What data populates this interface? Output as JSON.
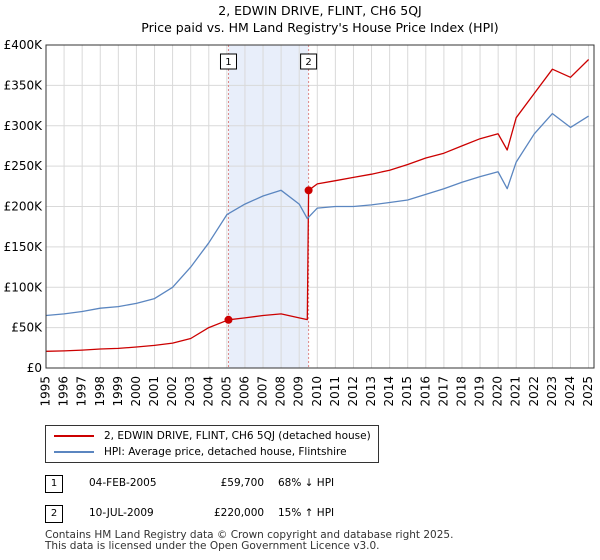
{
  "chart_data": {
    "type": "line",
    "title": "2, EDWIN DRIVE, FLINT, CH6 5QJ",
    "subtitle": "Price paid vs. HM Land Registry's House Price Index (HPI)",
    "xlabel": "",
    "ylabel": "",
    "xlim": [
      1995,
      2025.3
    ],
    "ylim": [
      0,
      400000
    ],
    "ytick_values": [
      0,
      50000,
      100000,
      150000,
      200000,
      250000,
      300000,
      350000,
      400000
    ],
    "ytick_labels": [
      "£0",
      "£50K",
      "£100K",
      "£150K",
      "£200K",
      "£250K",
      "£300K",
      "£350K",
      "£400K"
    ],
    "xtick_labels": [
      "1995",
      "1996",
      "1997",
      "1998",
      "1999",
      "2000",
      "2001",
      "2002",
      "2003",
      "2004",
      "2005",
      "2006",
      "2007",
      "2008",
      "2009",
      "2010",
      "2011",
      "2012",
      "2013",
      "2014",
      "2015",
      "2016",
      "2017",
      "2018",
      "2019",
      "2020",
      "2021",
      "2022",
      "2023",
      "2024",
      "2025"
    ],
    "grid": true,
    "shaded_region": [
      2005.09,
      2009.52
    ],
    "series": [
      {
        "name": "2, EDWIN DRIVE, FLINT, CH6 5QJ (detached house)",
        "color": "#cc0000",
        "x": [
          1995,
          1996,
          1997,
          1998,
          1999,
          2000,
          2001,
          2002,
          2003,
          2004,
          2005.09,
          2006,
          2007,
          2008,
          2009,
          2009.45,
          2009.52,
          2010,
          2011,
          2012,
          2013,
          2014,
          2015,
          2016,
          2017,
          2018,
          2019,
          2020,
          2020.5,
          2021,
          2022,
          2023,
          2024,
          2025
        ],
        "values": [
          20700,
          21200,
          22200,
          23500,
          24300,
          26000,
          28000,
          30800,
          36500,
          50000,
          59700,
          62000,
          65000,
          67000,
          62000,
          60000,
          220000,
          228000,
          232000,
          236000,
          240000,
          245000,
          252000,
          260000,
          266000,
          275000,
          284000,
          290000,
          270000,
          310000,
          340000,
          370000,
          360000,
          382000
        ]
      },
      {
        "name": "HPI: Average price, detached house, Flintshire",
        "color": "#5b86c0",
        "x": [
          1995,
          1996,
          1997,
          1998,
          1999,
          2000,
          2001,
          2002,
          2003,
          2004,
          2005,
          2006,
          2007,
          2008,
          2009,
          2009.45,
          2010,
          2011,
          2012,
          2013,
          2014,
          2015,
          2016,
          2017,
          2018,
          2019,
          2020,
          2020.5,
          2021,
          2022,
          2023,
          2024,
          2025
        ],
        "values": [
          65000,
          67000,
          70000,
          74000,
          76000,
          80000,
          86000,
          100000,
          125000,
          155000,
          190000,
          203000,
          213000,
          220000,
          203000,
          185000,
          198000,
          200000,
          200000,
          202000,
          205000,
          208000,
          215000,
          222000,
          230000,
          237000,
          243000,
          222000,
          255000,
          290000,
          315000,
          298000,
          312000
        ]
      }
    ],
    "sales": [
      {
        "label": "1",
        "x": 2005.09,
        "price": 59700
      },
      {
        "label": "2",
        "x": 2009.52,
        "price": 220000
      }
    ]
  },
  "legend": {
    "items": [
      {
        "label": "2, EDWIN DRIVE, FLINT, CH6 5QJ (detached house)",
        "color": "#cc0000"
      },
      {
        "label": "HPI: Average price, detached house, Flintshire",
        "color": "#5b86c0"
      }
    ]
  },
  "sales_table": [
    {
      "num": "1",
      "date": "04-FEB-2005",
      "price": "£59,700",
      "hpi": "68% ↓ HPI"
    },
    {
      "num": "2",
      "date": "10-JUL-2009",
      "price": "£220,000",
      "hpi": "15% ↑ HPI"
    }
  ],
  "footer": {
    "line1": "Contains HM Land Registry data © Crown copyright and database right 2025.",
    "line2": "This data is licensed under the Open Government Licence v3.0."
  }
}
